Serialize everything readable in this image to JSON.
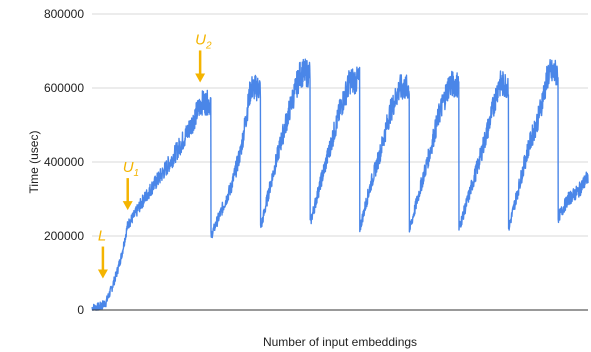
{
  "chart_data": {
    "type": "line",
    "title": "",
    "xlabel": "Number of input embeddings",
    "ylabel": "Time (usec)",
    "ylim": [
      0,
      800000
    ],
    "yticks": [
      0,
      200000,
      400000,
      600000,
      800000
    ],
    "ytick_labels": [
      "0",
      "200000",
      "400000",
      "600000",
      "800000"
    ],
    "grid": "horizontal",
    "legend": "none",
    "colors": {
      "series": "#4a86e8",
      "annotation": "#f4b400",
      "grid": "#d9d9d9",
      "axis": "#333333"
    },
    "x_range": [
      0,
      1000
    ],
    "series": [
      {
        "x": [
          0,
          15,
          28,
          40,
          50,
          60,
          72,
          85,
          100,
          120,
          140,
          160,
          180,
          200,
          220,
          240,
          260,
          280,
          300,
          320,
          340,
          360,
          380,
          400,
          420,
          440,
          460,
          480,
          500,
          520,
          540,
          560,
          580,
          600,
          620,
          640,
          660,
          680,
          700,
          720,
          740,
          760,
          780,
          800,
          820,
          840,
          860,
          880,
          900,
          920,
          940,
          960,
          980,
          1000
        ],
        "values": [
          5000,
          8000,
          20000,
          60000,
          100000,
          150000,
          230000,
          255000,
          290000,
          330000,
          365000,
          405000,
          450000,
          500000,
          560000,
          200000,
          265000,
          330000,
          430000,
          600000,
          220000,
          340000,
          450000,
          550000,
          640000,
          235000,
          340000,
          440000,
          540000,
          620000,
          220000,
          330000,
          420000,
          530000,
          600000,
          215000,
          320000,
          420000,
          530000,
          610000,
          220000,
          310000,
          400000,
          500000,
          610000,
          220000,
          330000,
          440000,
          520000,
          640000,
          250000,
          300000,
          320000,
          360000
        ]
      }
    ],
    "annotations": [
      {
        "label": "L",
        "sub": "",
        "x": 22,
        "y": 85000
      },
      {
        "label": "U",
        "sub": "1",
        "x": 72,
        "y": 270000
      },
      {
        "label": "U",
        "sub": "2",
        "x": 218,
        "y": 615000
      }
    ]
  }
}
